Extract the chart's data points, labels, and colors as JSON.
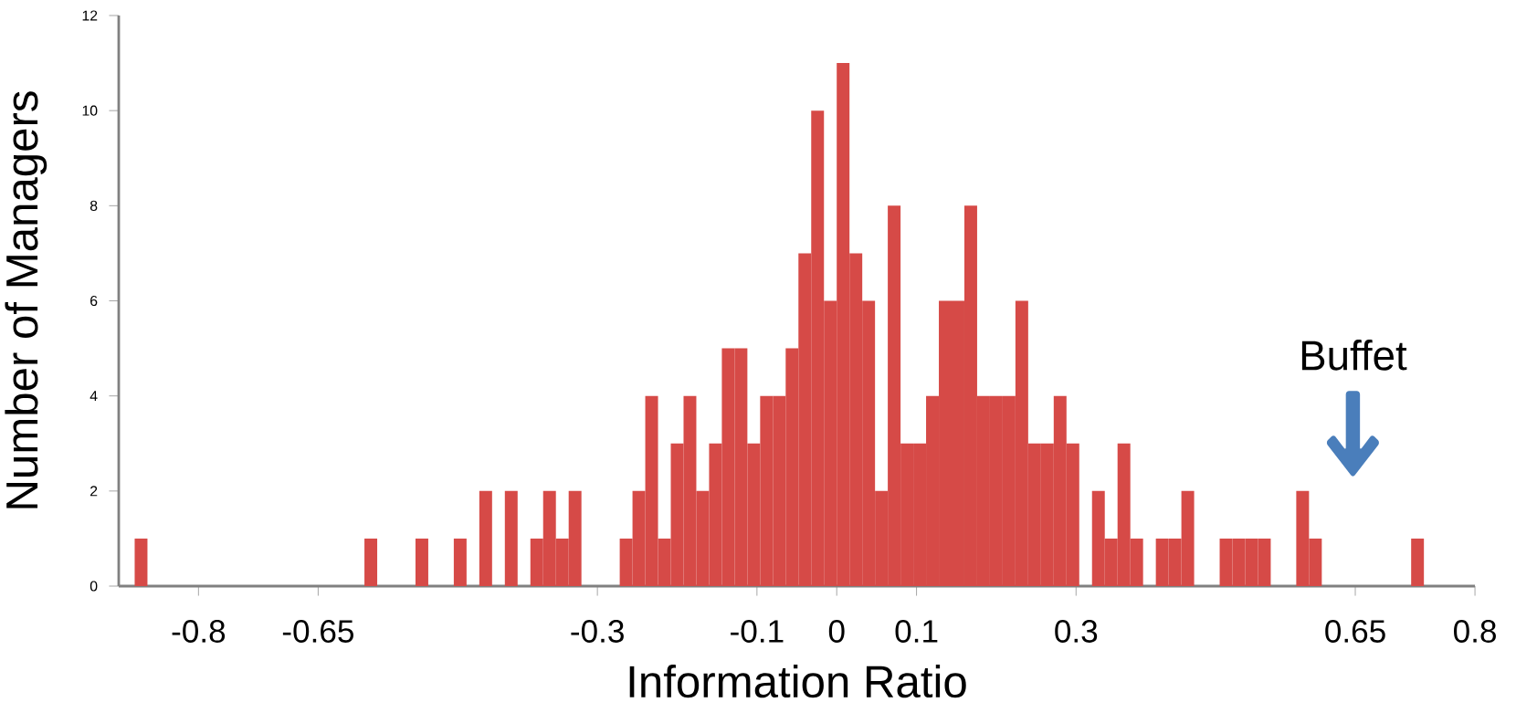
{
  "chart_data": {
    "type": "histogram",
    "xlabel": "Information Ratio",
    "ylabel": "Number of Managers",
    "color": "#d64a47",
    "bins": [
      -0.88,
      -0.864,
      -0.848,
      -0.832,
      -0.816,
      -0.8,
      -0.784,
      -0.768,
      -0.752,
      -0.736,
      -0.72,
      -0.704,
      -0.688,
      -0.672,
      -0.656,
      -0.64,
      -0.624,
      -0.608,
      -0.592,
      -0.576,
      -0.56,
      -0.544,
      -0.528,
      -0.512,
      -0.496,
      -0.48,
      -0.464,
      -0.448,
      -0.432,
      -0.416,
      -0.4,
      -0.384,
      -0.368,
      -0.352,
      -0.336,
      -0.32,
      -0.304,
      -0.288,
      -0.272,
      -0.256,
      -0.24,
      -0.224,
      -0.208,
      -0.192,
      -0.176,
      -0.16,
      -0.144,
      -0.128,
      -0.112,
      -0.096,
      -0.08,
      -0.064,
      -0.048,
      -0.032,
      -0.016,
      0,
      0.016,
      0.032,
      0.048,
      0.064,
      0.08,
      0.096,
      0.112,
      0.128,
      0.144,
      0.16,
      0.176,
      0.192,
      0.208,
      0.224,
      0.24,
      0.256,
      0.272,
      0.288,
      0.304,
      0.32,
      0.336,
      0.352,
      0.368,
      0.384,
      0.4,
      0.416,
      0.432,
      0.448,
      0.464,
      0.48,
      0.496,
      0.512,
      0.528,
      0.544,
      0.56,
      0.576,
      0.592,
      0.608,
      0.624,
      0.64,
      0.656,
      0.672,
      0.688,
      0.704,
      0.72,
      0.736
    ],
    "values": [
      1,
      0,
      0,
      0,
      0,
      0,
      0,
      0,
      0,
      0,
      0,
      0,
      0,
      0,
      0,
      0,
      0,
      0,
      1,
      0,
      0,
      0,
      1,
      0,
      0,
      1,
      0,
      2,
      0,
      2,
      0,
      1,
      2,
      1,
      2,
      0,
      0,
      0,
      1,
      2,
      4,
      1,
      3,
      4,
      2,
      3,
      5,
      5,
      3,
      4,
      4,
      5,
      7,
      10,
      6,
      11,
      7,
      6,
      2,
      8,
      3,
      3,
      4,
      6,
      6,
      8,
      4,
      4,
      4,
      6,
      3,
      3,
      4,
      3,
      0,
      2,
      1,
      3,
      1,
      0,
      1,
      1,
      2,
      0,
      0,
      1,
      1,
      1,
      1,
      0,
      0,
      2,
      1,
      0,
      0,
      0,
      0,
      0,
      0,
      0,
      1
    ],
    "xlim": [
      -0.9,
      0.8
    ],
    "xticks": [
      -0.8,
      -0.65,
      -0.3,
      -0.1,
      0,
      0.1,
      0.3,
      0.65,
      0.8
    ],
    "ylim": [
      0,
      12
    ],
    "yticks": [
      0,
      2,
      4,
      6,
      8,
      10,
      12
    ],
    "annotations": [
      "Buffet"
    ]
  }
}
